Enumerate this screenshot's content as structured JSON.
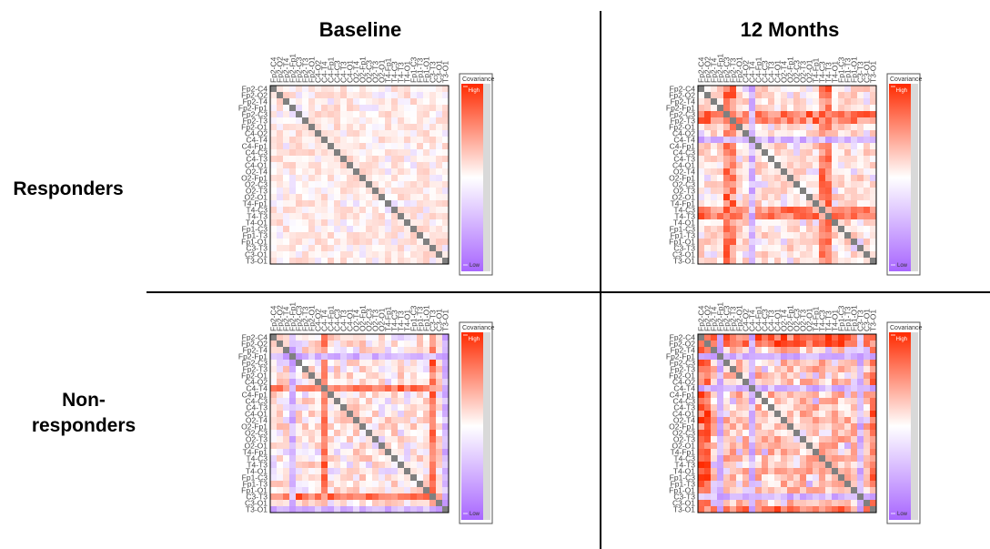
{
  "figure": {
    "column_titles": [
      "Baseline",
      "12 Months"
    ],
    "row_labels": [
      "Responders",
      "Non-\nresponders"
    ],
    "colors": {
      "high": "#ff2a00",
      "mid": "#ffffff",
      "low": "#a866ff",
      "diagonal": "#7f7f7f",
      "line": "#000000"
    }
  },
  "chart_data": [
    {
      "type": "heatmap",
      "title": "Baseline",
      "group": "Responders",
      "channels": [
        "Fp2-C4",
        "Fp2-O2",
        "Fp2-T4",
        "Fp2-Fp1",
        "Fp2-C3",
        "Fp2-T3",
        "Fp2-O1",
        "C4-O2",
        "C4-T4",
        "C4-Fp1",
        "C4-C3",
        "C4-T3",
        "C4-O1",
        "O2-T4",
        "O2-Fp1",
        "O2-C3",
        "O2-T3",
        "O2-O1",
        "T4-Fp1",
        "T4-C3",
        "T4-T3",
        "T4-O1",
        "Fp1-C3",
        "Fp1-T3",
        "Fp1-O1",
        "C3-T3",
        "C3-O1",
        "T3-O1"
      ],
      "strength": 0.25,
      "neg_fraction": 0.22,
      "hot_rows": [],
      "hot_cols": [],
      "cold_cols": [],
      "colorbar": {
        "title": "Covariance",
        "high_label": "High",
        "low_label": "Low"
      },
      "diagonal": "self (gray)"
    },
    {
      "type": "heatmap",
      "title": "12 Months",
      "group": "Responders",
      "channels": [
        "Fp2-C4",
        "Fp2-O2",
        "Fp2-T4",
        "Fp2-Fp1",
        "Fp2-C3",
        "Fp2-T3",
        "Fp2-O1",
        "C4-O2",
        "C4-T4",
        "C4-Fp1",
        "C4-C3",
        "C4-T3",
        "C4-O1",
        "O2-T4",
        "O2-Fp1",
        "O2-C3",
        "O2-T3",
        "O2-O1",
        "T4-Fp1",
        "T4-C3",
        "T4-T3",
        "T4-O1",
        "Fp1-C3",
        "Fp1-T3",
        "Fp1-O1",
        "C3-T3",
        "C3-O1",
        "T3-O1"
      ],
      "strength": 0.35,
      "neg_fraction": 0.18,
      "hot_rows": [
        4,
        5,
        19,
        20
      ],
      "hot_cols": [
        19,
        20
      ],
      "cold_cols": [
        8
      ],
      "colorbar": {
        "title": "Covariance",
        "high_label": "High",
        "low_label": "Low"
      },
      "diagonal": "self (gray)"
    },
    {
      "type": "heatmap",
      "title": "Baseline",
      "group": "Non-responders",
      "channels": [
        "Fp2-C4",
        "Fp2-O2",
        "Fp2-T4",
        "Fp2-Fp1",
        "Fp2-C3",
        "Fp2-T3",
        "Fp2-O1",
        "C4-O2",
        "C4-T4",
        "C4-Fp1",
        "C4-C3",
        "C4-T3",
        "C4-O1",
        "O2-T4",
        "O2-Fp1",
        "O2-C3",
        "O2-T3",
        "O2-O1",
        "T4-Fp1",
        "T4-C3",
        "T4-T3",
        "T4-O1",
        "Fp1-C3",
        "Fp1-T3",
        "Fp1-O1",
        "C3-T3",
        "C3-O1",
        "T3-O1"
      ],
      "strength": 0.35,
      "neg_fraction": 0.35,
      "hot_rows": [
        8,
        25
      ],
      "hot_cols": [
        8,
        25
      ],
      "cold_cols": [
        3,
        27
      ],
      "colorbar": {
        "title": "Covariance",
        "high_label": "High",
        "low_label": "Low"
      },
      "diagonal": "self (gray)"
    },
    {
      "type": "heatmap",
      "title": "12 Months",
      "group": "Non-responders",
      "channels": [
        "Fp2-C4",
        "Fp2-O2",
        "Fp2-T4",
        "Fp2-Fp1",
        "Fp2-C3",
        "Fp2-T3",
        "Fp2-O1",
        "C4-O2",
        "C4-T4",
        "C4-Fp1",
        "C4-C3",
        "C4-T3",
        "C4-O1",
        "O2-T4",
        "O2-Fp1",
        "O2-C3",
        "O2-T3",
        "O2-O1",
        "T4-Fp1",
        "T4-C3",
        "T4-T3",
        "T4-O1",
        "Fp1-C3",
        "Fp1-T3",
        "Fp1-O1",
        "C3-T3",
        "C3-O1",
        "T3-O1"
      ],
      "strength": 0.55,
      "neg_fraction": 0.1,
      "hot_rows": [
        0,
        1,
        25,
        27
      ],
      "hot_cols": [
        0,
        1,
        27
      ],
      "cold_cols": [
        3,
        8,
        25
      ],
      "colorbar": {
        "title": "Covariance",
        "high_label": "High",
        "low_label": "Low"
      },
      "diagonal": "self (gray)"
    }
  ]
}
